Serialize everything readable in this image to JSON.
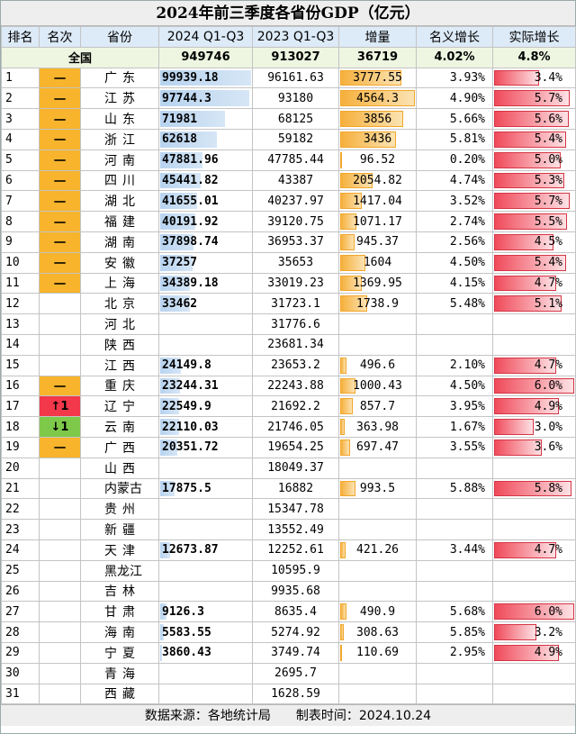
{
  "title": "2024年前三季度各省份GDP（亿元）",
  "headers": [
    "排名",
    "名次",
    "省份",
    "2024 Q1-Q3",
    "2023 Q1-Q3",
    "增量",
    "名义增长",
    "实际增长"
  ],
  "total": {
    "label": "全国",
    "gdp2024": "949746",
    "gdp2023": "913027",
    "inc": "36719",
    "nominal": "4.02%",
    "real": "4.8%"
  },
  "rows": [
    {
      "rank": "1",
      "change": "一",
      "change_type": "same",
      "province": "广东",
      "gdp2024": "99939.18",
      "gdp2023": "96161.63",
      "inc": "3777.55",
      "nominal": "3.93%",
      "real": "3.4%"
    },
    {
      "rank": "2",
      "change": "一",
      "change_type": "same",
      "province": "江苏",
      "gdp2024": "97744.3",
      "gdp2023": "93180",
      "inc": "4564.3",
      "nominal": "4.90%",
      "real": "5.7%"
    },
    {
      "rank": "3",
      "change": "一",
      "change_type": "same",
      "province": "山东",
      "gdp2024": "71981",
      "gdp2023": "68125",
      "inc": "3856",
      "nominal": "5.66%",
      "real": "5.6%"
    },
    {
      "rank": "4",
      "change": "一",
      "change_type": "same",
      "province": "浙江",
      "gdp2024": "62618",
      "gdp2023": "59182",
      "inc": "3436",
      "nominal": "5.81%",
      "real": "5.4%"
    },
    {
      "rank": "5",
      "change": "一",
      "change_type": "same",
      "province": "河南",
      "gdp2024": "47881.96",
      "gdp2023": "47785.44",
      "inc": "96.52",
      "nominal": "0.20%",
      "real": "5.0%"
    },
    {
      "rank": "6",
      "change": "一",
      "change_type": "same",
      "province": "四川",
      "gdp2024": "45441.82",
      "gdp2023": "43387",
      "inc": "2054.82",
      "nominal": "4.74%",
      "real": "5.3%"
    },
    {
      "rank": "7",
      "change": "一",
      "change_type": "same",
      "province": "湖北",
      "gdp2024": "41655.01",
      "gdp2023": "40237.97",
      "inc": "1417.04",
      "nominal": "3.52%",
      "real": "5.7%"
    },
    {
      "rank": "8",
      "change": "一",
      "change_type": "same",
      "province": "福建",
      "gdp2024": "40191.92",
      "gdp2023": "39120.75",
      "inc": "1071.17",
      "nominal": "2.74%",
      "real": "5.5%"
    },
    {
      "rank": "9",
      "change": "一",
      "change_type": "same",
      "province": "湖南",
      "gdp2024": "37898.74",
      "gdp2023": "36953.37",
      "inc": "945.37",
      "nominal": "2.56%",
      "real": "4.5%"
    },
    {
      "rank": "10",
      "change": "一",
      "change_type": "same",
      "province": "安徽",
      "gdp2024": "37257",
      "gdp2023": "35653",
      "inc": "1604",
      "nominal": "4.50%",
      "real": "5.4%"
    },
    {
      "rank": "11",
      "change": "一",
      "change_type": "same",
      "province": "上海",
      "gdp2024": "34389.18",
      "gdp2023": "33019.23",
      "inc": "1369.95",
      "nominal": "4.15%",
      "real": "4.7%"
    },
    {
      "rank": "12",
      "change": "",
      "change_type": "none",
      "province": "北京",
      "gdp2024": "33462",
      "gdp2023": "31723.1",
      "inc": "1738.9",
      "nominal": "5.48%",
      "real": "5.1%"
    },
    {
      "rank": "13",
      "change": "",
      "change_type": "none",
      "province": "河北",
      "gdp2024": "",
      "gdp2023": "31776.6",
      "inc": "",
      "nominal": "",
      "real": ""
    },
    {
      "rank": "14",
      "change": "",
      "change_type": "none",
      "province": "陕西",
      "gdp2024": "",
      "gdp2023": "23681.34",
      "inc": "",
      "nominal": "",
      "real": ""
    },
    {
      "rank": "15",
      "change": "",
      "change_type": "none",
      "province": "江西",
      "gdp2024": "24149.8",
      "gdp2023": "23653.2",
      "inc": "496.6",
      "nominal": "2.10%",
      "real": "4.7%"
    },
    {
      "rank": "16",
      "change": "一",
      "change_type": "same",
      "province": "重庆",
      "gdp2024": "23244.31",
      "gdp2023": "22243.88",
      "inc": "1000.43",
      "nominal": "4.50%",
      "real": "6.0%"
    },
    {
      "rank": "17",
      "change": "↑1",
      "change_type": "up",
      "province": "辽宁",
      "gdp2024": "22549.9",
      "gdp2023": "21692.2",
      "inc": "857.7",
      "nominal": "3.95%",
      "real": "4.9%"
    },
    {
      "rank": "18",
      "change": "↓1",
      "change_type": "down",
      "province": "云南",
      "gdp2024": "22110.03",
      "gdp2023": "21746.05",
      "inc": "363.98",
      "nominal": "1.67%",
      "real": "3.0%"
    },
    {
      "rank": "19",
      "change": "一",
      "change_type": "same",
      "province": "广西",
      "gdp2024": "20351.72",
      "gdp2023": "19654.25",
      "inc": "697.47",
      "nominal": "3.55%",
      "real": "3.6%"
    },
    {
      "rank": "20",
      "change": "",
      "change_type": "none",
      "province": "山西",
      "gdp2024": "",
      "gdp2023": "18049.37",
      "inc": "",
      "nominal": "",
      "real": ""
    },
    {
      "rank": "21",
      "change": "",
      "change_type": "none",
      "province": "内蒙古",
      "gdp2024": "17875.5",
      "gdp2023": "16882",
      "inc": "993.5",
      "nominal": "5.88%",
      "real": "5.8%"
    },
    {
      "rank": "22",
      "change": "",
      "change_type": "none",
      "province": "贵州",
      "gdp2024": "",
      "gdp2023": "15347.78",
      "inc": "",
      "nominal": "",
      "real": ""
    },
    {
      "rank": "23",
      "change": "",
      "change_type": "none",
      "province": "新疆",
      "gdp2024": "",
      "gdp2023": "13552.49",
      "inc": "",
      "nominal": "",
      "real": ""
    },
    {
      "rank": "24",
      "change": "",
      "change_type": "none",
      "province": "天津",
      "gdp2024": "12673.87",
      "gdp2023": "12252.61",
      "inc": "421.26",
      "nominal": "3.44%",
      "real": "4.7%"
    },
    {
      "rank": "25",
      "change": "",
      "change_type": "none",
      "province": "黑龙江",
      "gdp2024": "",
      "gdp2023": "10595.9",
      "inc": "",
      "nominal": "",
      "real": ""
    },
    {
      "rank": "26",
      "change": "",
      "change_type": "none",
      "province": "吉林",
      "gdp2024": "",
      "gdp2023": "9935.68",
      "inc": "",
      "nominal": "",
      "real": ""
    },
    {
      "rank": "27",
      "change": "",
      "change_type": "none",
      "province": "甘肃",
      "gdp2024": "9126.3",
      "gdp2023": "8635.4",
      "inc": "490.9",
      "nominal": "5.68%",
      "real": "6.0%"
    },
    {
      "rank": "28",
      "change": "",
      "change_type": "none",
      "province": "海南",
      "gdp2024": "5583.55",
      "gdp2023": "5274.92",
      "inc": "308.63",
      "nominal": "5.85%",
      "real": "3.2%"
    },
    {
      "rank": "29",
      "change": "",
      "change_type": "none",
      "province": "宁夏",
      "gdp2024": "3860.43",
      "gdp2023": "3749.74",
      "inc": "110.69",
      "nominal": "2.95%",
      "real": "4.9%"
    },
    {
      "rank": "30",
      "change": "",
      "change_type": "none",
      "province": "青海",
      "gdp2024": "",
      "gdp2023": "2695.7",
      "inc": "",
      "nominal": "",
      "real": ""
    },
    {
      "rank": "31",
      "change": "",
      "change_type": "none",
      "province": "西藏",
      "gdp2024": "",
      "gdp2023": "1628.59",
      "inc": "",
      "nominal": "",
      "real": ""
    }
  ],
  "footer": "数据来源：各地统计局　　制表时间：2024.10.24",
  "colors": {
    "change_same": "#f7b42c",
    "change_up": "#f2384a",
    "change_down": "#7ec94a",
    "gdp_bar": "#b7d3ef",
    "inc_bar": "#f6b03c",
    "real_bar": "#f04a5a"
  }
}
